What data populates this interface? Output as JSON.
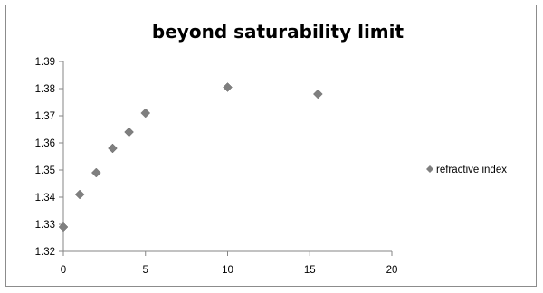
{
  "chart_data": {
    "type": "scatter",
    "title": "beyond saturability limit",
    "xlabel": "",
    "ylabel": "",
    "xlim": [
      0,
      20
    ],
    "ylim": [
      1.32,
      1.39
    ],
    "x_ticks": [
      "0",
      "5",
      "10",
      "15",
      "20"
    ],
    "y_ticks": [
      "1.32",
      "1.33",
      "1.34",
      "1.35",
      "1.36",
      "1.37",
      "1.38",
      "1.39"
    ],
    "grid": false,
    "legend_position": "right",
    "series": [
      {
        "name": "refractive index",
        "color": "#7f7f7f",
        "marker": "diamond",
        "x": [
          0,
          1,
          2,
          3,
          4,
          5,
          10,
          15.5
        ],
        "y": [
          1.329,
          1.341,
          1.349,
          1.358,
          1.364,
          1.371,
          1.3805,
          1.378
        ]
      }
    ]
  }
}
